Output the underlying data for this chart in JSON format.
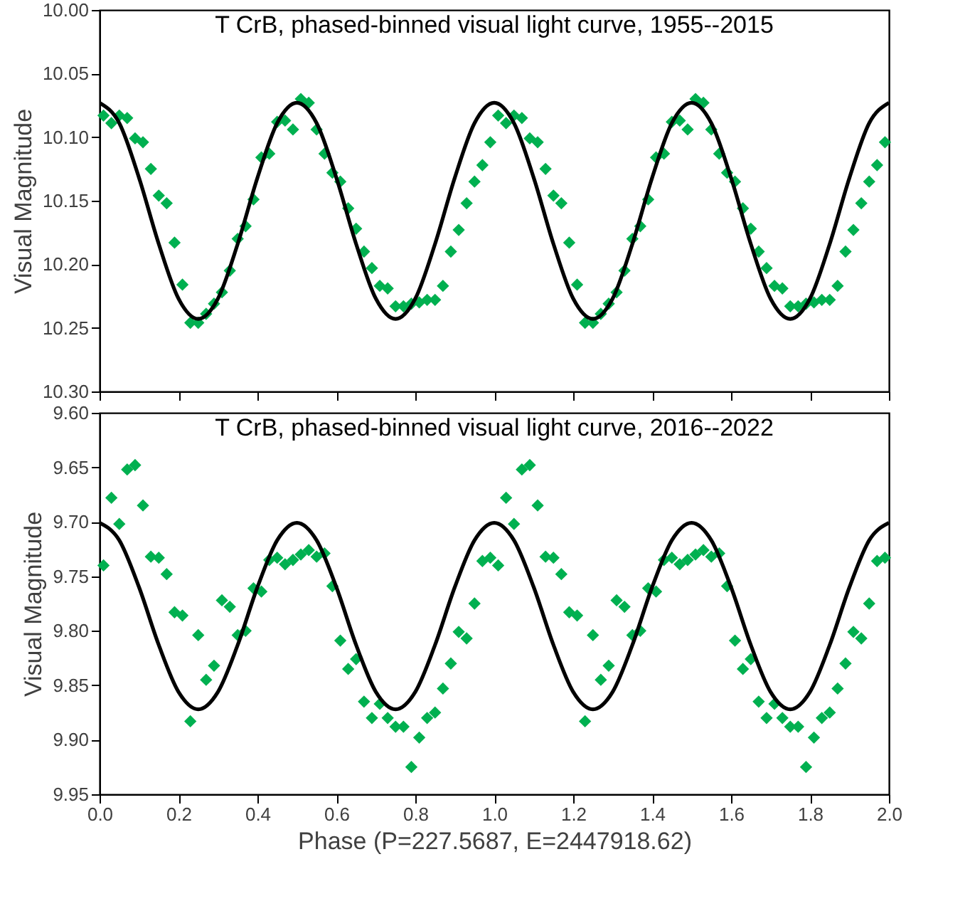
{
  "chart_data": [
    {
      "type": "scatter",
      "title": "T CrB, phased-binned visual light curve, 1955--2015",
      "ylabel": "Visual Magnitude",
      "tick_labels": "y",
      "grid": false,
      "xlim": [
        0,
        2
      ],
      "xticks": [
        {
          "value": 0,
          "label": null
        },
        {
          "value": 0.2,
          "label": null
        },
        {
          "value": 0.4,
          "label": null
        },
        {
          "value": 0.6,
          "label": null
        },
        {
          "value": 0.8,
          "label": null
        },
        {
          "value": 1,
          "label": null
        },
        {
          "value": 1.2,
          "label": null
        },
        {
          "value": 1.4,
          "label": null
        },
        {
          "value": 1.6,
          "label": null
        },
        {
          "value": 1.8,
          "label": null
        },
        {
          "value": 2,
          "label": null
        }
      ],
      "ylim": [
        10.3,
        10.0
      ],
      "yticks": [
        {
          "value": 10.0,
          "label": "10.00"
        },
        {
          "value": 10.05,
          "label": "10.05"
        },
        {
          "value": 10.1,
          "label": "10.10"
        },
        {
          "value": 10.15,
          "label": "10.15"
        },
        {
          "value": 10.2,
          "label": "10.20"
        },
        {
          "value": 10.25,
          "label": "10.25"
        },
        {
          "value": 10.3,
          "label": "10.30"
        }
      ],
      "series": [
        {
          "type": "scatter",
          "marker": "diamond",
          "color": "#00b050",
          "x": [
            0.01,
            0.03,
            0.05,
            0.07,
            0.09,
            0.11,
            0.13,
            0.15,
            0.17,
            0.19,
            0.21,
            0.23,
            0.25,
            0.27,
            0.29,
            0.31,
            0.33,
            0.35,
            0.37,
            0.39,
            0.41,
            0.43,
            0.45,
            0.47,
            0.49,
            0.51,
            0.53,
            0.55,
            0.57,
            0.59,
            0.61,
            0.63,
            0.65,
            0.67,
            0.69,
            0.71,
            0.73,
            0.75,
            0.77,
            0.79,
            0.81,
            0.83,
            0.85,
            0.87,
            0.89,
            0.91,
            0.93,
            0.95,
            0.97,
            0.99,
            1.01,
            1.03,
            1.05,
            1.07,
            1.09,
            1.11,
            1.13,
            1.15,
            1.17,
            1.19,
            1.21,
            1.23,
            1.25,
            1.27,
            1.29,
            1.31,
            1.33,
            1.35,
            1.37,
            1.39,
            1.41,
            1.43,
            1.45,
            1.47,
            1.49,
            1.51,
            1.53,
            1.55,
            1.57,
            1.59,
            1.61,
            1.63,
            1.65,
            1.67,
            1.69,
            1.71,
            1.73,
            1.75,
            1.77,
            1.79,
            1.81,
            1.83,
            1.85,
            1.87,
            1.89,
            1.91,
            1.93,
            1.95,
            1.97,
            1.99
          ],
          "values": [
            10.083,
            10.089,
            10.083,
            10.085,
            10.101,
            10.104,
            10.125,
            10.146,
            10.152,
            10.183,
            10.216,
            10.246,
            10.246,
            10.239,
            10.231,
            10.222,
            10.205,
            10.18,
            10.17,
            10.149,
            10.116,
            10.113,
            10.088,
            10.087,
            10.094,
            10.07,
            10.073,
            10.094,
            10.113,
            10.128,
            10.135,
            10.156,
            10.172,
            10.19,
            10.203,
            10.217,
            10.219,
            10.233,
            10.233,
            10.231,
            10.23,
            10.228,
            10.228,
            10.217,
            10.19,
            10.173,
            10.152,
            10.135,
            10.122,
            10.104,
            10.083,
            10.089,
            10.083,
            10.085,
            10.101,
            10.104,
            10.125,
            10.146,
            10.152,
            10.183,
            10.216,
            10.246,
            10.246,
            10.239,
            10.231,
            10.222,
            10.205,
            10.18,
            10.17,
            10.149,
            10.116,
            10.113,
            10.088,
            10.087,
            10.094,
            10.07,
            10.073,
            10.094,
            10.113,
            10.128,
            10.135,
            10.156,
            10.172,
            10.19,
            10.203,
            10.217,
            10.219,
            10.233,
            10.233,
            10.231,
            10.23,
            10.228,
            10.228,
            10.217,
            10.19,
            10.173,
            10.152,
            10.135,
            10.122,
            10.104
          ]
        },
        {
          "type": "line",
          "line_style": "solid",
          "color": "#000000",
          "x": [
            0,
            0.05,
            0.1,
            0.15,
            0.2,
            0.25,
            0.3,
            0.35,
            0.4,
            0.45,
            0.5,
            0.55,
            0.6,
            0.65,
            0.7,
            0.75,
            0.8,
            0.85,
            0.9,
            0.95,
            1,
            1.05,
            1.1,
            1.15,
            1.2,
            1.25,
            1.3,
            1.35,
            1.4,
            1.45,
            1.5,
            1.55,
            1.6,
            1.65,
            1.7,
            1.75,
            1.8,
            1.85,
            1.9,
            1.95,
            2
          ],
          "values": [
            10.073,
            10.089,
            10.132,
            10.184,
            10.227,
            10.243,
            10.227,
            10.184,
            10.132,
            10.089,
            10.073,
            10.089,
            10.132,
            10.184,
            10.227,
            10.243,
            10.227,
            10.184,
            10.132,
            10.089,
            10.073,
            10.089,
            10.132,
            10.184,
            10.227,
            10.243,
            10.227,
            10.184,
            10.132,
            10.089,
            10.073,
            10.089,
            10.132,
            10.184,
            10.227,
            10.243,
            10.227,
            10.184,
            10.132,
            10.089,
            10.073
          ]
        }
      ]
    },
    {
      "type": "scatter",
      "title": "T CrB, phased-binned visual light curve, 2016--2022",
      "xlabel": "Phase (P=227.5687, E=2447918.62)",
      "ylabel": "Visual Magnitude",
      "grid": false,
      "xlim": [
        0,
        2
      ],
      "xticks": [
        {
          "value": 0,
          "label": "0.0"
        },
        {
          "value": 0.2,
          "label": "0.2"
        },
        {
          "value": 0.4,
          "label": "0.4"
        },
        {
          "value": 0.6,
          "label": "0.6"
        },
        {
          "value": 0.8,
          "label": "0.8"
        },
        {
          "value": 1,
          "label": "1.0"
        },
        {
          "value": 1.2,
          "label": "1.2"
        },
        {
          "value": 1.4,
          "label": "1.4"
        },
        {
          "value": 1.6,
          "label": "1.6"
        },
        {
          "value": 1.8,
          "label": "1.8"
        },
        {
          "value": 2,
          "label": "2.0"
        }
      ],
      "ylim": [
        9.95,
        9.6
      ],
      "yticks": [
        {
          "value": 9.6,
          "label": "9.60"
        },
        9.65,
        {
          "value": 9.7,
          "label": "9.70"
        },
        9.75,
        {
          "value": 9.8,
          "label": "9.80"
        },
        9.85,
        {
          "value": 9.9,
          "label": "9.90"
        },
        9.95
      ],
      "series": [
        {
          "type": "scatter",
          "marker": "diamond",
          "color": "#00b050",
          "x": [
            0.01,
            0.03,
            0.05,
            0.07,
            0.09,
            0.11,
            0.13,
            0.15,
            0.17,
            0.19,
            0.21,
            0.23,
            0.25,
            0.27,
            0.29,
            0.31,
            0.33,
            0.35,
            0.37,
            0.39,
            0.41,
            0.43,
            0.45,
            0.47,
            0.49,
            0.51,
            0.53,
            0.55,
            0.57,
            0.59,
            0.61,
            0.63,
            0.65,
            0.67,
            0.69,
            0.71,
            0.73,
            0.75,
            0.77,
            0.79,
            0.81,
            0.83,
            0.85,
            0.87,
            0.89,
            0.91,
            0.93,
            0.95,
            0.97,
            0.99,
            1.01,
            1.03,
            1.05,
            1.07,
            1.09,
            1.11,
            1.13,
            1.15,
            1.17,
            1.19,
            1.21,
            1.23,
            1.25,
            1.27,
            1.29,
            1.31,
            1.33,
            1.35,
            1.37,
            1.39,
            1.41,
            1.43,
            1.45,
            1.47,
            1.49,
            1.51,
            1.53,
            1.55,
            1.57,
            1.59,
            1.61,
            1.63,
            1.65,
            1.67,
            1.69,
            1.71,
            1.73,
            1.75,
            1.77,
            1.79,
            1.81,
            1.83,
            1.85,
            1.87,
            1.89,
            1.91,
            1.93,
            1.95,
            1.97,
            1.99
          ],
          "values": [
            9.74,
            9.678,
            9.702,
            9.652,
            9.648,
            9.685,
            9.732,
            9.733,
            9.748,
            9.783,
            9.786,
            9.883,
            9.804,
            9.845,
            9.832,
            9.772,
            9.778,
            9.804,
            9.8,
            9.761,
            9.764,
            9.735,
            9.733,
            9.739,
            9.735,
            9.73,
            9.726,
            9.732,
            9.729,
            9.759,
            9.809,
            9.835,
            9.826,
            9.865,
            9.88,
            9.867,
            9.88,
            9.888,
            9.888,
            9.925,
            9.898,
            9.88,
            9.875,
            9.853,
            9.83,
            9.801,
            9.807,
            9.775,
            9.736,
            9.733,
            9.74,
            9.678,
            9.702,
            9.652,
            9.648,
            9.685,
            9.732,
            9.733,
            9.748,
            9.783,
            9.786,
            9.883,
            9.804,
            9.845,
            9.832,
            9.772,
            9.778,
            9.804,
            9.8,
            9.761,
            9.764,
            9.735,
            9.733,
            9.739,
            9.735,
            9.73,
            9.726,
            9.732,
            9.729,
            9.759,
            9.809,
            9.835,
            9.826,
            9.865,
            9.88,
            9.867,
            9.88,
            9.888,
            9.888,
            9.925,
            9.898,
            9.88,
            9.875,
            9.853,
            9.83,
            9.801,
            9.807,
            9.775,
            9.736,
            9.733
          ]
        },
        {
          "type": "line",
          "line_style": "solid",
          "color": "#000000",
          "x": [
            0,
            0.05,
            0.1,
            0.15,
            0.2,
            0.25,
            0.3,
            0.35,
            0.4,
            0.45,
            0.5,
            0.55,
            0.6,
            0.65,
            0.7,
            0.75,
            0.8,
            0.85,
            0.9,
            0.95,
            1,
            1.05,
            1.1,
            1.15,
            1.2,
            1.25,
            1.3,
            1.35,
            1.4,
            1.45,
            1.5,
            1.55,
            1.6,
            1.65,
            1.7,
            1.75,
            1.8,
            1.85,
            1.9,
            1.95,
            2
          ],
          "values": [
            9.701,
            9.717,
            9.76,
            9.813,
            9.856,
            9.872,
            9.856,
            9.813,
            9.76,
            9.717,
            9.701,
            9.717,
            9.76,
            9.813,
            9.856,
            9.872,
            9.856,
            9.813,
            9.76,
            9.717,
            9.701,
            9.717,
            9.76,
            9.813,
            9.856,
            9.872,
            9.856,
            9.813,
            9.76,
            9.717,
            9.701,
            9.717,
            9.76,
            9.813,
            9.856,
            9.872,
            9.856,
            9.813,
            9.76,
            9.717,
            9.701
          ]
        }
      ]
    }
  ]
}
